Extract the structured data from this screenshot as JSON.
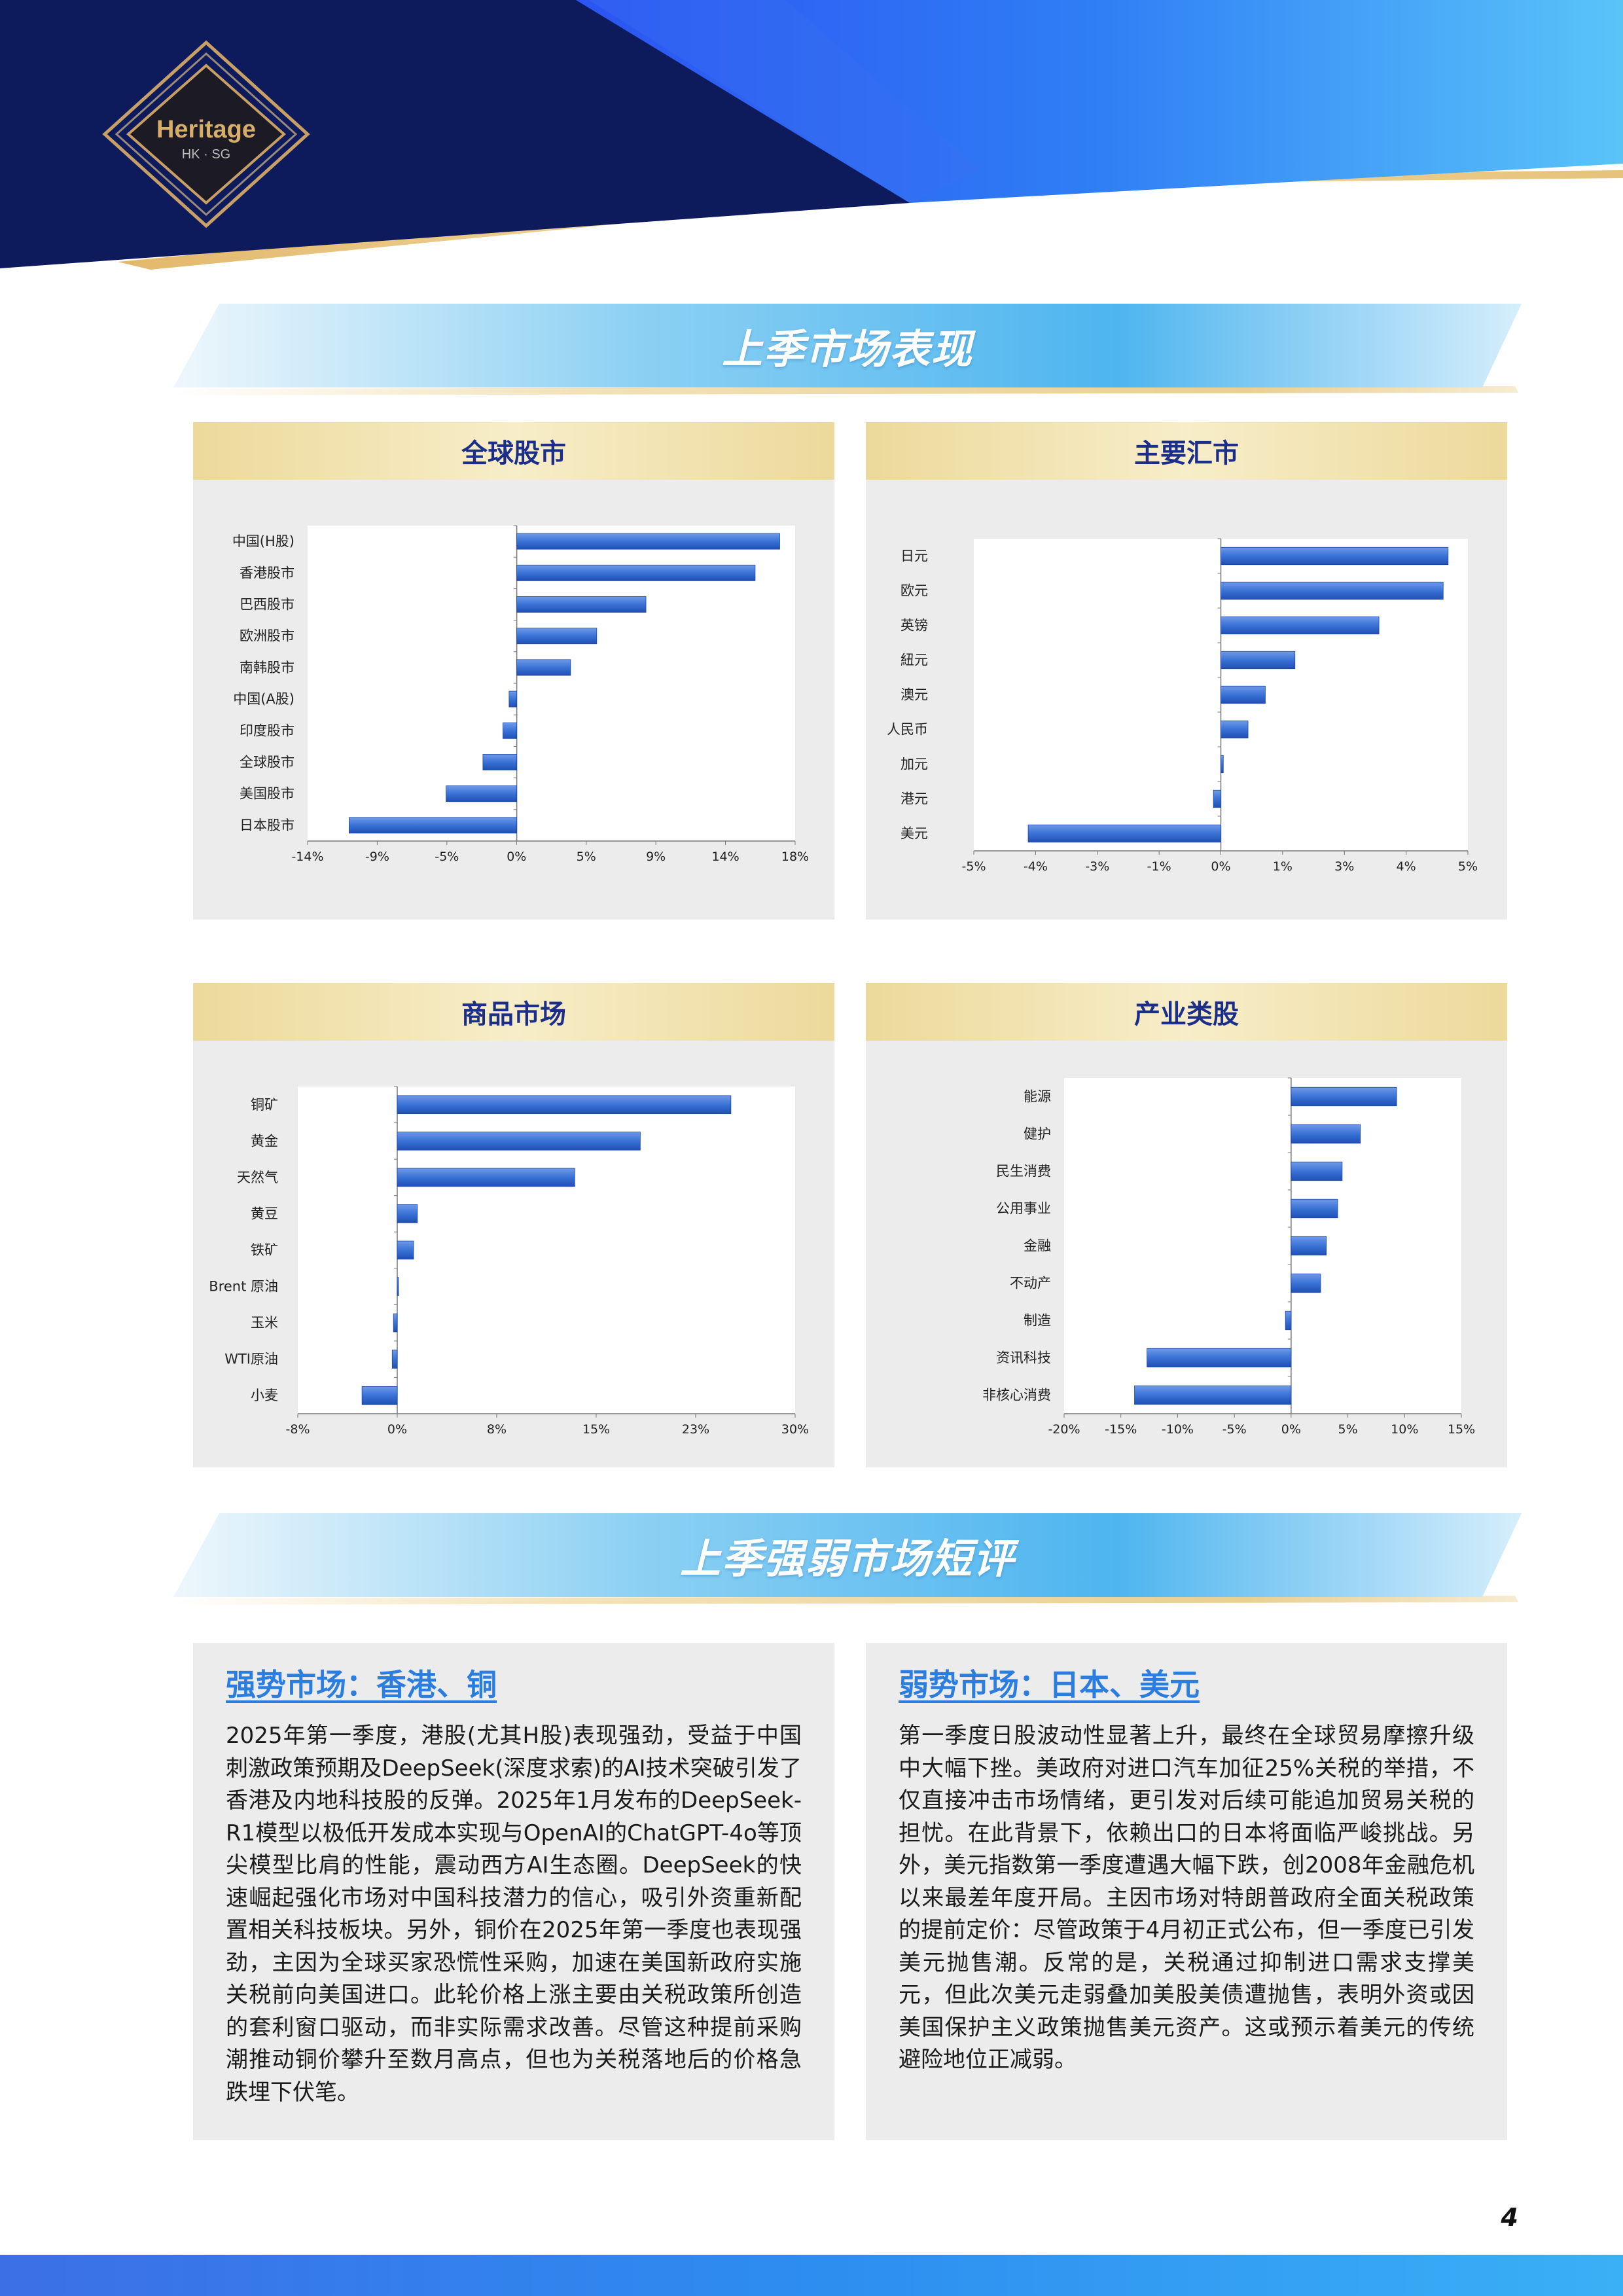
{
  "brand": {
    "logo_text": "Heritage",
    "logo_sub": "HK · SG"
  },
  "sections": {
    "performance_title": "上季市场表现",
    "review_title": "上季强弱市场短评"
  },
  "colors": {
    "bar": "#3a72d6",
    "panel_bg": "#ececec",
    "title_blue": "#1b2f8a",
    "accent_blue": "#2b7de0",
    "gold": "#e7c982"
  },
  "chart_data": [
    {
      "type": "bar",
      "orientation": "horizontal",
      "title": "全球股市",
      "categories": [
        "中国(H股)",
        "香港股市",
        "巴西股市",
        "欧洲股市",
        "南韩股市",
        "中国(A股)",
        "印度股市",
        "全球股市",
        "美国股市",
        "日本股市"
      ],
      "values": [
        17.1,
        15.5,
        8.4,
        5.2,
        3.5,
        -0.5,
        -0.9,
        -2.2,
        -4.6,
        -10.9
      ],
      "xticks": [
        "-14%",
        "-9%",
        "-5%",
        "0%",
        "5%",
        "9%",
        "14%",
        "18%"
      ],
      "xlim": [
        -13.6,
        18.1
      ],
      "grid": false
    },
    {
      "type": "bar",
      "orientation": "horizontal",
      "title": "主要汇市",
      "categories": [
        "日元",
        "欧元",
        "英镑",
        "紐元",
        "澳元",
        "人民币",
        "加元",
        "港元",
        "美元"
      ],
      "values": [
        4.6,
        4.5,
        3.2,
        1.5,
        0.9,
        0.55,
        0.05,
        -0.15,
        -3.9
      ],
      "xticks": [
        "-5%",
        "-4%",
        "-3%",
        "-1%",
        "0%",
        "1%",
        "3%",
        "4%",
        "5%"
      ],
      "xlim": [
        -5.0,
        5.0
      ],
      "grid": false
    },
    {
      "type": "bar",
      "orientation": "horizontal",
      "title": "商品市场",
      "categories": [
        "铜矿",
        "黄金",
        "天然气",
        "黄豆",
        "铁矿",
        "Brent 原油",
        "玉米",
        "WTI原油",
        "小麦"
      ],
      "values": [
        26.5,
        19.3,
        14.1,
        1.6,
        1.3,
        0.1,
        -0.3,
        -0.4,
        -2.8
      ],
      "xticks": [
        "-8%",
        "0%",
        "8%",
        "15%",
        "23%",
        "30%"
      ],
      "xlim": [
        -7.9,
        31.6
      ],
      "grid": false
    },
    {
      "type": "bar",
      "orientation": "horizontal",
      "title": "产业类股",
      "categories": [
        "能源",
        "健护",
        "民生消费",
        "公用事业",
        "金融",
        "不动产",
        "制造",
        "资讯科技",
        "非核心消费"
      ],
      "values": [
        9.3,
        6.1,
        4.5,
        4.1,
        3.1,
        2.6,
        -0.5,
        -12.7,
        -13.8
      ],
      "xticks": [
        "-20%",
        "-15%",
        "-10%",
        "-5%",
        "0%",
        "5%",
        "10%",
        "15%"
      ],
      "xlim": [
        -20,
        15
      ],
      "grid": false
    }
  ],
  "review": {
    "strong": {
      "title": "强势市场：香港、铜",
      "body": "2025年第一季度，港股(尤其H股)表现强劲，受益于中国刺激政策预期及DeepSeek(深度求索)的AI技术突破引发了香港及内地科技股的反弹。2025年1月发布的DeepSeek-R1模型以极低开发成本实现与OpenAI的ChatGPT-4o等顶尖模型比肩的性能，震动西方AI生态圈。DeepSeek的快速崛起强化市场对中国科技潜力的信心，吸引外资重新配置相关科技板块。另外，铜价在2025年第一季度也表现强劲，主因为全球买家恐慌性采购，加速在美国新政府实施关税前向美国进口。此轮价格上涨主要由关税政策所创造的套利窗口驱动，而非实际需求改善。尽管这种提前采购潮推动铜价攀升至数月高点，但也为关税落地后的价格急跌埋下伏笔。"
    },
    "weak": {
      "title": "弱势市场：日本、美元",
      "body": "第一季度日股波动性显著上升，最终在全球贸易摩擦升级中大幅下挫。美政府对进口汽车加征25%关税的举措，不仅直接冲击市场情绪，更引发对后续可能追加贸易关税的担忧。在此背景下，依赖出口的日本将面临严峻挑战。另外，美元指数第一季度遭遇大幅下跌，创2008年金融危机以来最差年度开局。主因市场对特朗普政府全面关税政策的提前定价：尽管政策于4月初正式公布，但一季度已引发美元抛售潮。反常的是，关税通过抑制进口需求支撑美元，但此次美元走弱叠加美股美债遭抛售，表明外资或因美国保护主义政策抛售美元资产。这或预示着美元的传统避险地位正减弱。"
    }
  },
  "page_number": "4"
}
